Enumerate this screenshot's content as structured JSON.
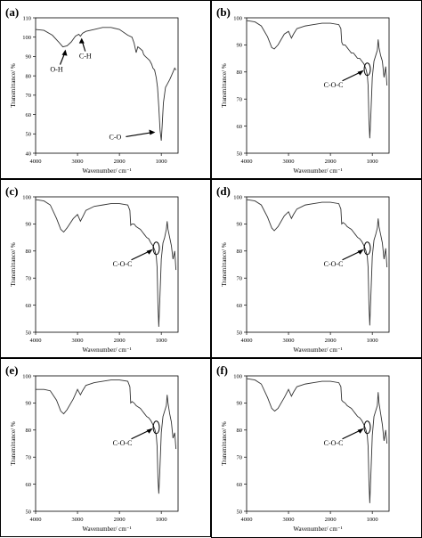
{
  "figure": {
    "panels": [
      {
        "letter": "(a)",
        "chart_data": {
          "type": "line",
          "xlabel": "Wavenumber/ cm⁻¹",
          "ylabel": "Transmittance/ %",
          "xlim": [
            4000,
            600
          ],
          "ylim": [
            40,
            110
          ],
          "xticks": [
            4000,
            3000,
            2000,
            1000
          ],
          "yticks": [
            40,
            50,
            60,
            70,
            80,
            90,
            100,
            110
          ],
          "x": [
            4000,
            3800,
            3600,
            3450,
            3350,
            3250,
            3150,
            3050,
            2970,
            2930,
            2880,
            2800,
            2600,
            2400,
            2200,
            2000,
            1800,
            1700,
            1650,
            1600,
            1560,
            1500,
            1450,
            1420,
            1380,
            1330,
            1280,
            1230,
            1200,
            1160,
            1120,
            1090,
            1060,
            1030,
            1000,
            980,
            950,
            900,
            850,
            800,
            760,
            720,
            680,
            650
          ],
          "y": [
            104,
            103.5,
            101,
            97.5,
            95,
            95.5,
            97.5,
            100.5,
            101.5,
            100.5,
            102,
            103,
            104,
            105,
            105,
            104,
            101,
            100,
            97,
            92,
            95,
            94,
            93,
            91,
            90,
            89,
            88,
            86,
            84,
            83,
            79,
            74,
            64,
            52,
            46.5,
            54,
            66,
            74,
            76,
            78,
            80,
            82,
            84,
            83
          ],
          "annotations": [
            {
              "text": "O-H",
              "x": 3330,
              "y": 95
            },
            {
              "text": "C-H",
              "x": 2900,
              "y": 100.5
            },
            {
              "text": "C-O",
              "x": 1080,
              "y": 49
            }
          ]
        }
      },
      {
        "letter": "(b)",
        "chart_data": {
          "type": "line",
          "xlabel": "Wavenumber/ cm⁻¹",
          "ylabel": "Transmittance/ %",
          "xlim": [
            4000,
            600
          ],
          "ylim": [
            50,
            100
          ],
          "xticks": [
            4000,
            3000,
            2000,
            1000
          ],
          "yticks": [
            50,
            60,
            70,
            80,
            90,
            100
          ],
          "x": [
            4000,
            3800,
            3650,
            3500,
            3400,
            3340,
            3250,
            3100,
            3000,
            2930,
            2880,
            2800,
            2600,
            2400,
            2200,
            2000,
            1800,
            1750,
            1730,
            1700,
            1650,
            1600,
            1550,
            1500,
            1450,
            1400,
            1350,
            1300,
            1250,
            1200,
            1150,
            1120,
            1100,
            1080,
            1060,
            1040,
            1000,
            960,
            920,
            880,
            860,
            840,
            800,
            760,
            720,
            680,
            650
          ],
          "y": [
            99,
            98.5,
            97,
            93,
            89,
            88.5,
            90,
            94,
            95,
            92.5,
            94,
            96,
            97,
            97.5,
            98,
            98,
            97.5,
            96,
            91,
            90,
            90,
            89,
            88,
            87,
            87,
            86,
            85,
            85,
            84,
            83,
            81,
            79,
            75,
            62,
            55.5,
            62,
            78,
            84,
            86,
            88,
            92,
            89,
            86,
            84,
            78,
            82,
            75
          ],
          "annotations": [
            {
              "text": "C-O-C",
              "x": 1120,
              "y": 81
            }
          ]
        }
      },
      {
        "letter": "(c)",
        "chart_data": {
          "type": "line",
          "xlabel": "Wavenumber/ cm⁻¹",
          "ylabel": "Transmittance/ %",
          "xlim": [
            4000,
            600
          ],
          "ylim": [
            50,
            100
          ],
          "xticks": [
            4000,
            3000,
            2000,
            1000
          ],
          "yticks": [
            50,
            60,
            70,
            80,
            90,
            100
          ],
          "x": [
            4000,
            3800,
            3650,
            3500,
            3400,
            3330,
            3250,
            3100,
            3000,
            2930,
            2880,
            2800,
            2600,
            2400,
            2200,
            2000,
            1800,
            1750,
            1730,
            1700,
            1650,
            1600,
            1550,
            1500,
            1450,
            1400,
            1350,
            1300,
            1250,
            1200,
            1150,
            1120,
            1100,
            1080,
            1060,
            1040,
            1000,
            960,
            920,
            880,
            860,
            840,
            800,
            760,
            720,
            680,
            650
          ],
          "y": [
            99,
            98.5,
            97,
            92,
            88,
            87,
            88.5,
            92,
            93.5,
            91,
            92.5,
            95,
            96.5,
            97,
            97.5,
            97.5,
            97,
            95,
            89.5,
            90,
            90,
            89,
            88.5,
            88,
            87,
            86,
            85,
            84.5,
            83,
            82,
            80,
            78,
            74,
            60,
            52,
            60,
            77,
            83,
            85,
            88,
            91,
            88,
            85,
            82,
            77,
            80,
            73
          ],
          "annotations": [
            {
              "text": "C-O-C",
              "x": 1120,
              "y": 81
            }
          ]
        }
      },
      {
        "letter": "(d)",
        "chart_data": {
          "type": "line",
          "xlabel": "Wavenumber/ cm⁻¹",
          "ylabel": "Transmittance/ %",
          "xlim": [
            4000,
            600
          ],
          "ylim": [
            50,
            100
          ],
          "xticks": [
            4000,
            3000,
            2000,
            1000
          ],
          "yticks": [
            50,
            60,
            70,
            80,
            90,
            100
          ],
          "x": [
            4000,
            3800,
            3650,
            3500,
            3400,
            3340,
            3250,
            3100,
            3000,
            2930,
            2880,
            2800,
            2600,
            2400,
            2200,
            2000,
            1800,
            1750,
            1730,
            1700,
            1650,
            1600,
            1550,
            1500,
            1450,
            1400,
            1350,
            1300,
            1250,
            1200,
            1150,
            1120,
            1100,
            1080,
            1060,
            1040,
            1000,
            960,
            920,
            880,
            860,
            840,
            800,
            760,
            720,
            680,
            650
          ],
          "y": [
            99,
            98.5,
            97,
            92.5,
            88.5,
            87.5,
            89,
            93,
            94.5,
            92,
            93.5,
            95.5,
            97,
            97.5,
            98,
            98,
            97.5,
            95.5,
            90,
            90.5,
            90,
            89,
            88.5,
            88,
            87,
            86,
            85,
            84.5,
            83.5,
            82,
            80,
            78,
            74,
            60,
            52.5,
            61,
            78,
            84,
            86,
            88.5,
            92,
            89,
            86,
            83,
            77,
            81,
            74
          ],
          "annotations": [
            {
              "text": "C-O-C",
              "x": 1120,
              "y": 81
            }
          ]
        }
      },
      {
        "letter": "(e)",
        "chart_data": {
          "type": "line",
          "xlabel": "Wavenumber/ cm⁻¹",
          "ylabel": "Transmittance/ %",
          "xlim": [
            4000,
            600
          ],
          "ylim": [
            50,
            100
          ],
          "xticks": [
            4000,
            3000,
            2000,
            1000
          ],
          "yticks": [
            50,
            60,
            70,
            80,
            90,
            100
          ],
          "x": [
            4000,
            3800,
            3650,
            3500,
            3400,
            3330,
            3250,
            3100,
            3000,
            2930,
            2880,
            2800,
            2600,
            2400,
            2200,
            2000,
            1800,
            1750,
            1730,
            1700,
            1650,
            1600,
            1550,
            1500,
            1450,
            1400,
            1350,
            1300,
            1250,
            1200,
            1150,
            1120,
            1100,
            1080,
            1060,
            1040,
            1000,
            960,
            920,
            880,
            860,
            840,
            800,
            760,
            720,
            680,
            650
          ],
          "y": [
            95,
            95,
            94.5,
            91,
            87,
            86,
            87.5,
            91.5,
            95,
            93,
            94.5,
            96.5,
            97.5,
            98,
            98.5,
            98.5,
            98,
            96,
            90,
            90.5,
            90,
            89,
            88.5,
            88,
            87,
            86,
            85,
            84.5,
            83.5,
            82,
            80,
            78,
            74,
            62,
            56.5,
            63,
            79,
            85,
            87,
            89,
            93,
            90,
            86,
            83,
            77,
            79,
            73
          ],
          "annotations": [
            {
              "text": "C-O-C",
              "x": 1120,
              "y": 81
            }
          ]
        }
      },
      {
        "letter": "(f)",
        "chart_data": {
          "type": "line",
          "xlabel": "Wavenumber/ cm⁻¹",
          "ylabel": "Transmittance/ %",
          "xlim": [
            4000,
            600
          ],
          "ylim": [
            50,
            100
          ],
          "xticks": [
            4000,
            3000,
            2000,
            1000
          ],
          "yticks": [
            50,
            60,
            70,
            80,
            90,
            100
          ],
          "x": [
            4000,
            3800,
            3650,
            3500,
            3400,
            3330,
            3250,
            3100,
            3000,
            2930,
            2880,
            2800,
            2600,
            2400,
            2200,
            2000,
            1800,
            1750,
            1730,
            1700,
            1650,
            1600,
            1550,
            1500,
            1450,
            1400,
            1350,
            1300,
            1250,
            1200,
            1150,
            1120,
            1100,
            1080,
            1060,
            1040,
            1000,
            960,
            920,
            880,
            860,
            840,
            800,
            760,
            720,
            680,
            650
          ],
          "y": [
            99,
            98.5,
            97,
            92,
            88,
            87,
            88,
            92,
            95,
            92.5,
            94,
            96,
            97,
            97.5,
            98,
            98,
            97.5,
            96,
            91,
            90.5,
            90,
            89,
            88.5,
            88,
            87,
            86,
            85,
            84.5,
            83.5,
            82,
            80,
            78,
            74,
            61,
            53,
            61,
            78,
            85,
            87,
            89,
            94,
            90,
            86,
            82,
            76,
            80,
            75
          ],
          "annotations": [
            {
              "text": "C-O-C",
              "x": 1120,
              "y": 81
            }
          ]
        }
      }
    ]
  }
}
